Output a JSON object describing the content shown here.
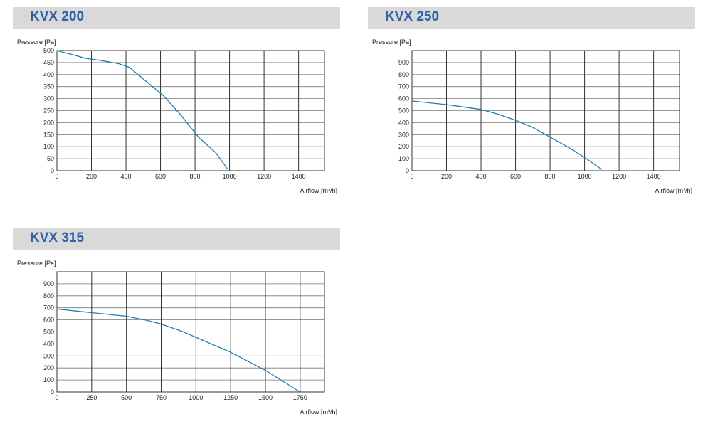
{
  "charts": [
    {
      "title": "KVX 200",
      "ylabel": "Pressure [Pa]",
      "xlabel": "Airflow [m³/h]"
    },
    {
      "title": "KVX 250",
      "ylabel": "Pressure [Pa]",
      "xlabel": "Airflow [m³/h]"
    },
    {
      "title": "KVX 315",
      "ylabel": "Pressure [Pa]",
      "xlabel": "Airflow [m³/h]"
    }
  ],
  "colors": {
    "curve": "#1a7fb5",
    "title_band": "#d9d9d9",
    "title_text": "#2f62a8",
    "grid": "#333333"
  },
  "chart_data": [
    {
      "type": "line",
      "title": "KVX 200",
      "xlabel": "Airflow [m³/h]",
      "ylabel": "Pressure [Pa]",
      "xlim": [
        0,
        1550
      ],
      "ylim": [
        0,
        500
      ],
      "xticks": [
        0,
        200,
        400,
        600,
        800,
        1000,
        1200,
        1400
      ],
      "yticks": [
        0,
        50,
        100,
        150,
        200,
        250,
        300,
        350,
        400,
        450,
        500
      ],
      "grid": true,
      "series": [
        {
          "x": [
            0,
            80,
            170,
            260,
            360,
            420,
            520,
            620,
            720,
            820,
            920,
            990
          ],
          "y": [
            500,
            485,
            467,
            458,
            445,
            430,
            370,
            310,
            230,
            140,
            75,
            5
          ]
        }
      ]
    },
    {
      "type": "line",
      "title": "KVX 250",
      "xlabel": "Airflow [m³/h]",
      "ylabel": "Pressure [Pa]",
      "xlim": [
        0,
        1550
      ],
      "ylim": [
        0,
        1000
      ],
      "xticks": [
        0,
        200,
        400,
        600,
        800,
        1000,
        1200,
        1400
      ],
      "yticks": [
        0,
        100,
        200,
        300,
        400,
        500,
        600,
        700,
        800,
        900
      ],
      "grid": true,
      "series": [
        {
          "x": [
            0,
            200,
            400,
            500,
            600,
            700,
            800,
            900,
            1000,
            1100
          ],
          "y": [
            580,
            550,
            510,
            470,
            420,
            360,
            280,
            200,
            110,
            10
          ]
        }
      ]
    },
    {
      "type": "line",
      "title": "KVX 315",
      "xlabel": "Airflow [m³/h]",
      "ylabel": "Pressure [Pa]",
      "xlim": [
        0,
        1925
      ],
      "ylim": [
        0,
        1000
      ],
      "xticks": [
        0,
        250,
        500,
        750,
        1000,
        1250,
        1500,
        1750
      ],
      "yticks": [
        0,
        100,
        200,
        300,
        400,
        500,
        600,
        700,
        800,
        900
      ],
      "grid": true,
      "series": [
        {
          "x": [
            0,
            250,
            500,
            650,
            750,
            900,
            1000,
            1250,
            1500,
            1750
          ],
          "y": [
            690,
            660,
            630,
            595,
            565,
            505,
            455,
            330,
            180,
            0
          ]
        }
      ]
    }
  ]
}
